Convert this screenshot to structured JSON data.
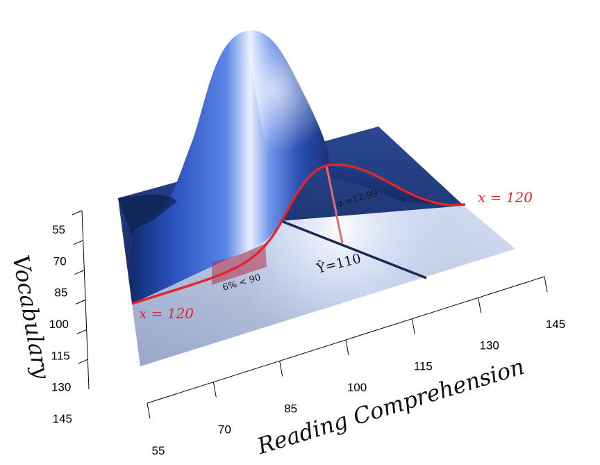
{
  "chart_data": {
    "type": "surface",
    "title": "",
    "xlabel": "Reading Comprehension",
    "ylabel": "Vocabulary",
    "x_ticks": [
      "55",
      "70",
      "85",
      "100",
      "115",
      "130",
      "145"
    ],
    "y_ticks": [
      "55",
      "70",
      "85",
      "100",
      "115",
      "130",
      "145"
    ],
    "xlim": [
      55,
      145
    ],
    "ylim": [
      55,
      145
    ],
    "surface": "bivariate normal density",
    "slice": {
      "x": 120,
      "conditional_mean": 110,
      "sigma": 12.99,
      "cutoff": 90,
      "pct_below_cutoff": 6
    },
    "annotations": {
      "slice_label_left": "x = 120",
      "slice_label_right": "x = 120",
      "mean_label": "Ŷ=110",
      "sigma_label": "σ =12.99",
      "tail_label": "6% < 90"
    },
    "colors": {
      "surface": "#2f56c0",
      "surface_highlight": "#e8eeff",
      "base_dark": "#1c3370",
      "base_light": "#a8b6d6",
      "slice_curve": "#e0262b",
      "tail_fill": "#b5314a"
    }
  }
}
